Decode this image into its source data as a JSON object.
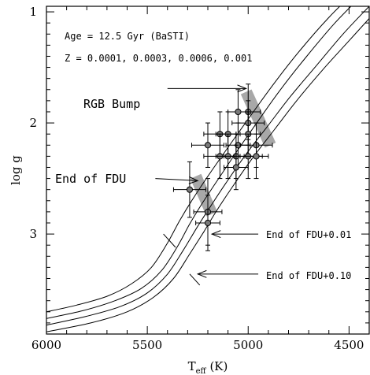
{
  "chart_data": {
    "type": "scatter",
    "xlabel": "T",
    "xlabel_sub": "eff",
    "xlabel_unit": " (K)",
    "ylabel": "log g",
    "xlim": [
      6000,
      4400
    ],
    "ylim": [
      3.9,
      0.95
    ],
    "x_ticks": [
      6000,
      5500,
      5000,
      4500
    ],
    "y_ticks": [
      1,
      2,
      3
    ],
    "grid": false,
    "info_lines": [
      "Age = 12.5 Gyr (BaSTI)",
      "Z = 0.0001, 0.0003, 0.0006, 0.001"
    ],
    "isochrones": [
      {
        "x": [
          6000,
          5850,
          5700,
          5580,
          5480,
          5400,
          5340,
          5280,
          5200,
          5100,
          4990,
          4870,
          4740,
          4600,
          4450,
          4400
        ],
        "y": [
          3.7,
          3.64,
          3.56,
          3.45,
          3.3,
          3.08,
          2.88,
          2.7,
          2.48,
          2.22,
          1.94,
          1.64,
          1.34,
          1.05,
          0.78,
          0.68
        ]
      },
      {
        "x": [
          6000,
          5820,
          5660,
          5530,
          5430,
          5350,
          5290,
          5230,
          5150,
          5050,
          4950,
          4840,
          4710,
          4570,
          4430,
          4400
        ],
        "y": [
          3.76,
          3.69,
          3.6,
          3.49,
          3.33,
          3.11,
          2.91,
          2.73,
          2.51,
          2.24,
          1.98,
          1.7,
          1.4,
          1.1,
          0.84,
          0.78
        ]
      },
      {
        "x": [
          6000,
          5800,
          5630,
          5500,
          5400,
          5320,
          5250,
          5190,
          5110,
          5010,
          4900,
          4790,
          4660,
          4530,
          4400
        ],
        "y": [
          3.82,
          3.74,
          3.65,
          3.53,
          3.36,
          3.14,
          2.93,
          2.76,
          2.54,
          2.28,
          2.02,
          1.76,
          1.48,
          1.2,
          0.95
        ]
      },
      {
        "x": [
          6000,
          5780,
          5600,
          5470,
          5370,
          5290,
          5220,
          5160,
          5080,
          4980,
          4870,
          4760,
          4630,
          4500,
          4400
        ],
        "y": [
          3.88,
          3.8,
          3.7,
          3.57,
          3.4,
          3.18,
          2.98,
          2.8,
          2.58,
          2.32,
          2.06,
          1.8,
          1.52,
          1.26,
          1.06
        ]
      }
    ],
    "points": [
      {
        "x": 5000,
        "y": 1.9,
        "xerr": 60,
        "yerr": 0.25
      },
      {
        "x": 5050,
        "y": 1.9,
        "xerr": 50,
        "yerr": 0.2
      },
      {
        "x": 5000,
        "y": 2.0,
        "xerr": 80,
        "yerr": 0.2
      },
      {
        "x": 5140,
        "y": 2.1,
        "xerr": 80,
        "yerr": 0.2
      },
      {
        "x": 5100,
        "y": 2.1,
        "xerr": 60,
        "yerr": 0.2
      },
      {
        "x": 5000,
        "y": 2.1,
        "xerr": 60,
        "yerr": 0.2
      },
      {
        "x": 5050,
        "y": 2.2,
        "xerr": 60,
        "yerr": 0.2
      },
      {
        "x": 5200,
        "y": 2.2,
        "xerr": 80,
        "yerr": 0.2
      },
      {
        "x": 4960,
        "y": 2.2,
        "xerr": 80,
        "yerr": 0.2
      },
      {
        "x": 5140,
        "y": 2.3,
        "xerr": 80,
        "yerr": 0.2
      },
      {
        "x": 5100,
        "y": 2.3,
        "xerr": 60,
        "yerr": 0.2
      },
      {
        "x": 5060,
        "y": 2.3,
        "xerr": 60,
        "yerr": 0.2
      },
      {
        "x": 5000,
        "y": 2.3,
        "xerr": 70,
        "yerr": 0.2
      },
      {
        "x": 4960,
        "y": 2.3,
        "xerr": 60,
        "yerr": 0.2
      },
      {
        "x": 5060,
        "y": 2.4,
        "xerr": 60,
        "yerr": 0.2
      },
      {
        "x": 5290,
        "y": 2.6,
        "xerr": 80,
        "yerr": 0.25
      },
      {
        "x": 5200,
        "y": 2.8,
        "xerr": 70,
        "yerr": 0.3
      },
      {
        "x": 5200,
        "y": 2.9,
        "xerr": 60,
        "yerr": 0.25
      }
    ],
    "bands": [
      {
        "name": "RGB Bump",
        "from": [
          5010,
          1.72
        ],
        "to": [
          4890,
          2.2
        ]
      },
      {
        "name": "End of FDU",
        "from": [
          5260,
          2.48
        ],
        "to": [
          5180,
          2.82
        ]
      }
    ],
    "fdu_ticks": [
      {
        "x": [
          5420,
          5360
        ],
        "y": [
          3.0,
          3.12
        ]
      },
      {
        "x": [
          5290,
          5240
        ],
        "y": [
          3.36,
          3.46
        ]
      }
    ],
    "annotations": [
      {
        "text": "RGB Bump",
        "size": "big",
        "text_x": 5790,
        "text_y": 1.68,
        "arrow_from": [
          5400,
          1.69
        ],
        "arrow_to": [
          5010,
          1.69
        ]
      },
      {
        "text": "End of FDU",
        "size": "big",
        "text_x": 5915,
        "text_y": 2.48,
        "arrow_from": [
          5460,
          2.5
        ],
        "arrow_to": [
          5250,
          2.52
        ]
      },
      {
        "text": "End of FDU+0.01",
        "size": "small",
        "text_x": 4930,
        "text_y": 3.0,
        "arrow_from": [
          4950,
          3.0
        ],
        "arrow_to": [
          5180,
          3.0
        ]
      },
      {
        "text": "End of FDU+0.10",
        "size": "small",
        "text_x": 4930,
        "text_y": 3.36,
        "arrow_from": [
          4950,
          3.36
        ],
        "arrow_to": [
          5250,
          3.36
        ]
      }
    ]
  }
}
